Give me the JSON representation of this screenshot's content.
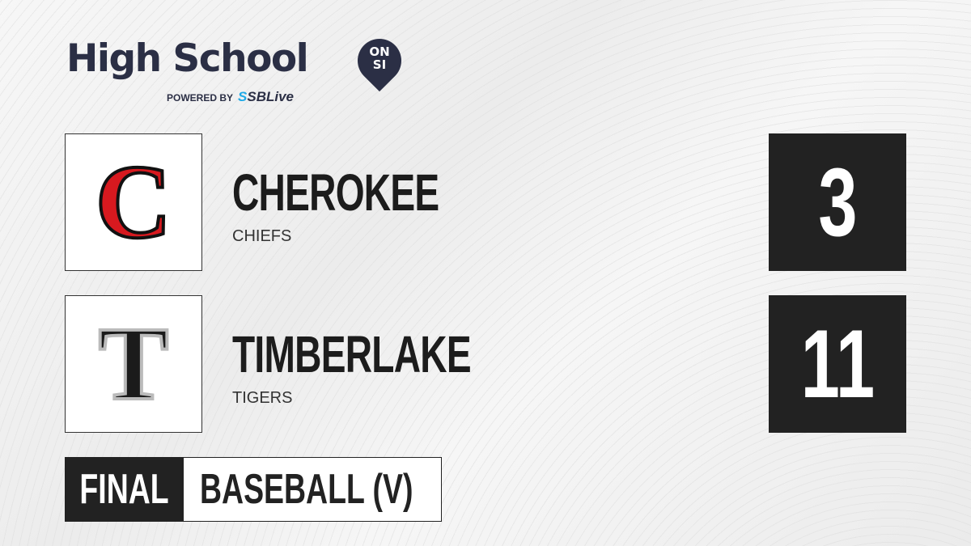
{
  "brand": {
    "title": "High School",
    "badge_top": "ON",
    "badge_bottom": "SI",
    "powered_by": "POWERED BY",
    "partner_prefix": "S",
    "partner": "SBLive",
    "accent": "#1fa9e6",
    "navy": "#2b2f45"
  },
  "teams": [
    {
      "logo_letter": "C",
      "logo_color": "#d7191f",
      "name": "CHEROKEE",
      "mascot": "CHIEFS",
      "score": "3"
    },
    {
      "logo_letter": "T",
      "logo_color": "#1b1b1b",
      "name": "TIMBERLAKE",
      "mascot": "TIGERS",
      "score": "11"
    }
  ],
  "game": {
    "status": "FINAL",
    "sport": "BASEBALL (V)"
  }
}
